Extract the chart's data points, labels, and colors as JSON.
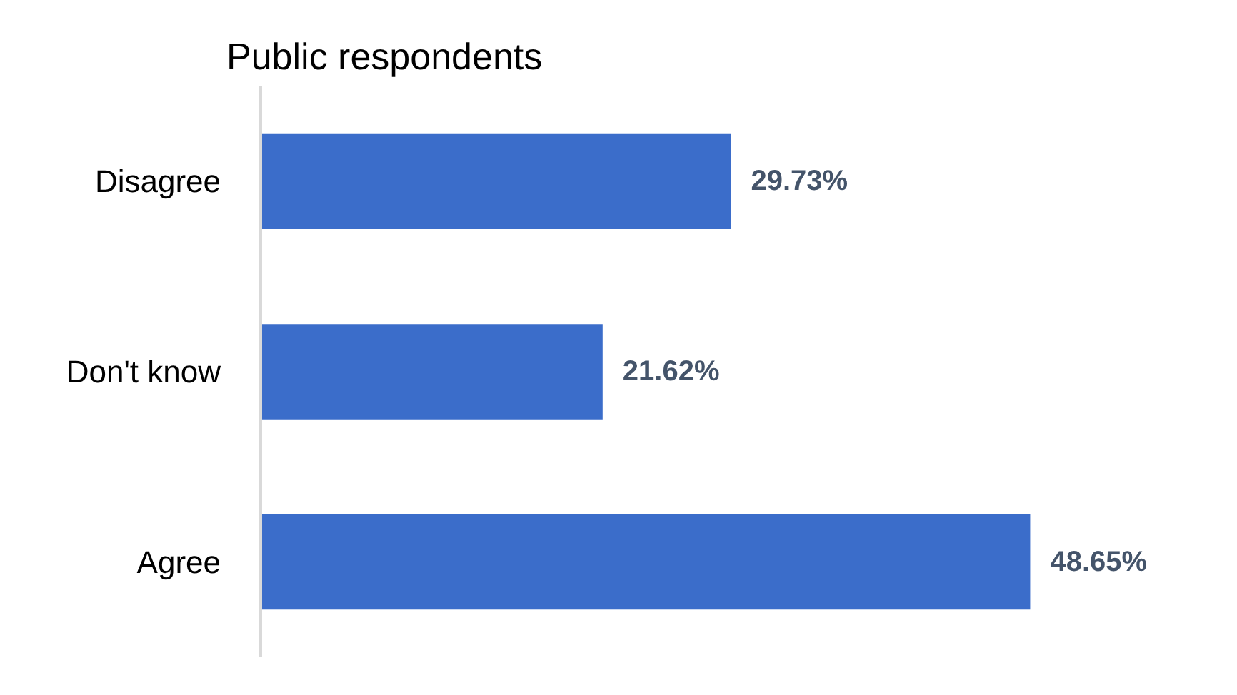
{
  "chart_data": {
    "type": "bar",
    "orientation": "horizontal",
    "title": "Public respondents",
    "categories": [
      "Disagree",
      "Don't know",
      "Agree"
    ],
    "values": [
      29.73,
      21.62,
      48.65
    ],
    "value_labels": [
      "29.73%",
      "21.62%",
      "48.65%"
    ],
    "color": "#3b6dca",
    "grid": false
  }
}
